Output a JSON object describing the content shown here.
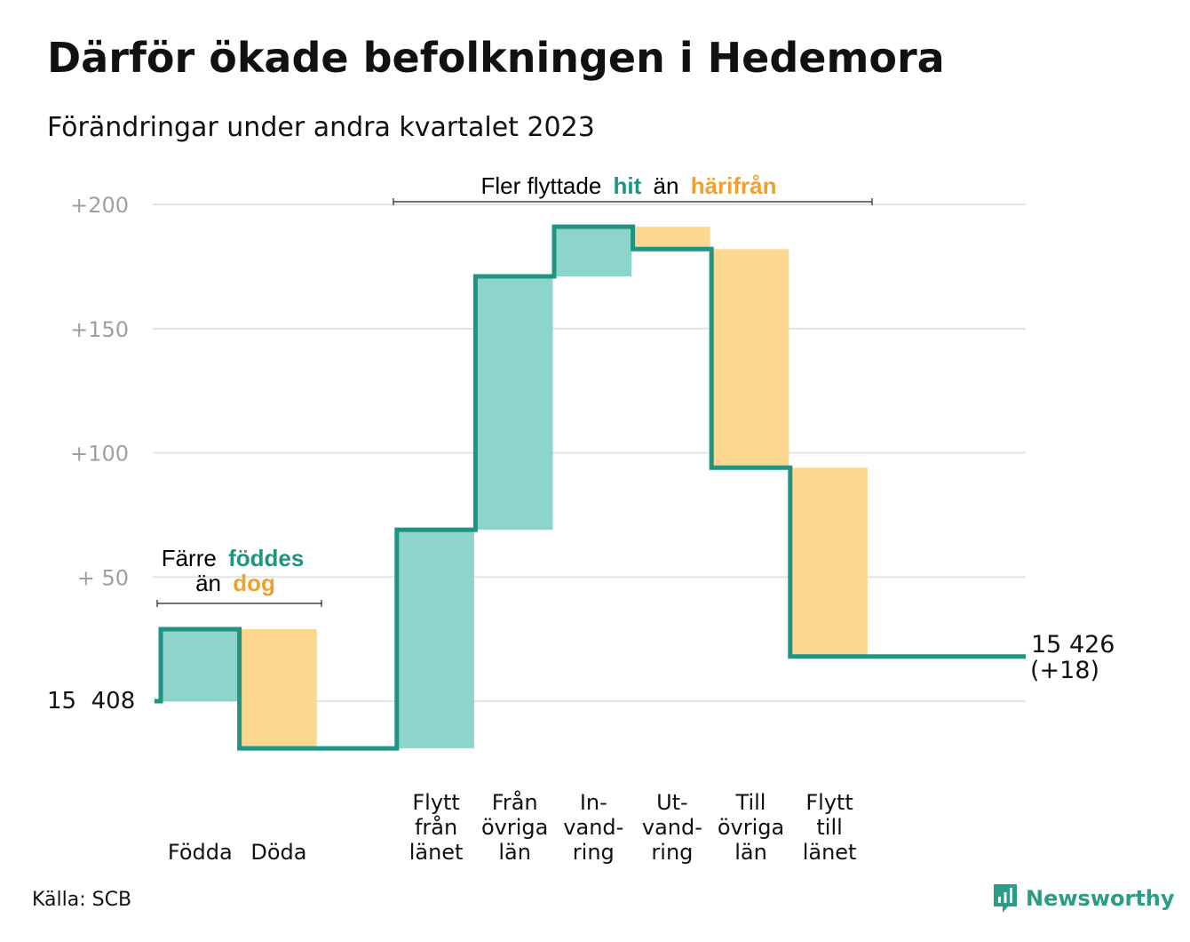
{
  "title": "Därför ökade befolkningen i Hedemora",
  "subtitle": "Förändringar under andra kvartalet 2023",
  "source": "Källa: SCB",
  "brand": "Newsworthy",
  "colors": {
    "increase_fill": "#8dd5cb",
    "decrease_fill": "#fbd78f",
    "step_line": "#1f9483",
    "teal_text": "#1f9483",
    "orange_text": "#f0a12c",
    "grid": "#e4e4e4",
    "axis_text": "#a0a0a0"
  },
  "annotations": {
    "natural": {
      "prefix": "Färre",
      "hit": "föddes",
      "mid": "än",
      "away": "dog"
    },
    "migration": {
      "prefix": "Fler flyttade",
      "hit": "hit",
      "mid": "än",
      "away": "härifrån"
    }
  },
  "chart_data": {
    "type": "waterfall",
    "baseline": 15408,
    "baseline_label": "15  408",
    "end_label": "15 426",
    "end_change_label": "(+18)",
    "ylim": [
      -20,
      200
    ],
    "yticks": [
      {
        "value": 50,
        "label": "+  50"
      },
      {
        "value": 100,
        "label": "+100"
      },
      {
        "value": 150,
        "label": "+150"
      },
      {
        "value": 200,
        "label": "+200"
      }
    ],
    "steps": [
      {
        "label": [
          "Födda"
        ],
        "value": 29
      },
      {
        "label": [
          "Döda"
        ],
        "value": -48
      },
      {
        "label": [
          ""
        ],
        "value": 0
      },
      {
        "label": [
          "Flytt",
          "från",
          "länet"
        ],
        "value": 88
      },
      {
        "label": [
          "Från",
          "övriga",
          "län"
        ],
        "value": 102
      },
      {
        "label": [
          "In-",
          "vand-",
          "ring"
        ],
        "value": 20
      },
      {
        "label": [
          "Ut-",
          "vand-",
          "ring"
        ],
        "value": -9
      },
      {
        "label": [
          "Till",
          "övriga",
          "län"
        ],
        "value": -88
      },
      {
        "label": [
          "Flytt",
          "till",
          "länet"
        ],
        "value": -76
      }
    ],
    "end_value": 18,
    "grid": true
  }
}
